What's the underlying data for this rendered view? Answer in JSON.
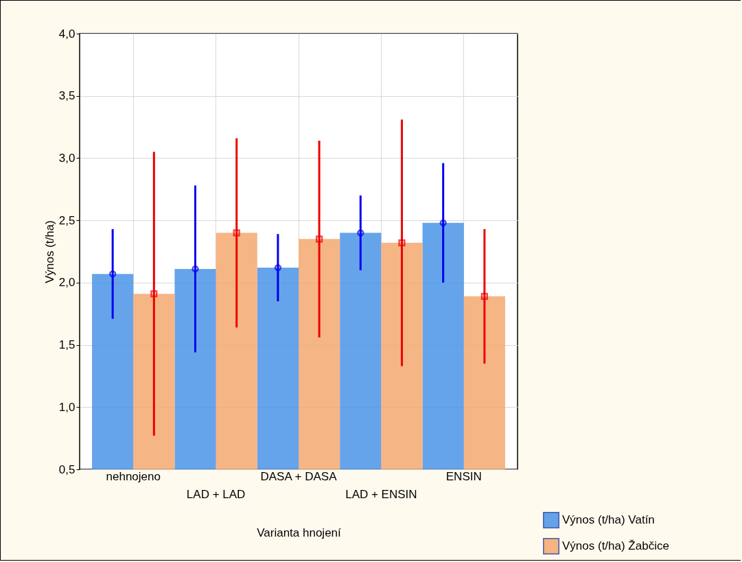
{
  "chart_data": {
    "type": "bar",
    "xlabel": "Varianta hnojení",
    "ylabel": "Výnos (t/ha)",
    "categories": [
      "nehnojeno",
      "LAD + LAD",
      "DASA + DASA",
      "LAD + ENSIN",
      "ENSIN"
    ],
    "series": [
      {
        "name": "Výnos (t/ha) Vatín",
        "color": "#4a94e8",
        "values": [
          2.07,
          2.11,
          2.12,
          2.4,
          2.48
        ]
      },
      {
        "name": "Výnos (t/ha) Žabčice",
        "color": "#f4a870",
        "values": [
          1.91,
          2.4,
          2.35,
          2.32,
          1.89
        ]
      },
      {
        "type": "scatter",
        "color": "#0000ee",
        "marker": "circle",
        "x": [
          "nehnojeno",
          "LAD + LAD",
          "DASA + DASA",
          "LAD + ENSIN",
          "ENSIN"
        ],
        "values": [
          2.07,
          2.11,
          2.12,
          2.4,
          2.48
        ],
        "errors": [
          0.36,
          0.67,
          0.27,
          0.3,
          0.48
        ]
      },
      {
        "type": "scatter",
        "color": "#ee0000",
        "marker": "square",
        "x": [
          "nehnojeno",
          "LAD + LAD",
          "DASA + DASA",
          "LAD + ENSIN",
          "ENSIN"
        ],
        "values": [
          1.91,
          2.4,
          2.35,
          2.32,
          1.89
        ],
        "errors": [
          1.14,
          0.76,
          0.79,
          0.99,
          0.54
        ]
      }
    ],
    "ylim": [
      0.5,
      4.0
    ],
    "yticks": [
      {
        "value": 0.5,
        "label": "0,5"
      },
      {
        "value": 1,
        "label": "1,0"
      },
      {
        "value": 1.5,
        "label": "1,5"
      },
      {
        "value": 2,
        "label": "2,0"
      },
      {
        "value": 2.5,
        "label": "2,5"
      },
      {
        "value": 3,
        "label": "3,0"
      },
      {
        "value": 3.5,
        "label": "3,5"
      },
      {
        "value": 4,
        "label": "4,0"
      }
    ],
    "grid": true,
    "legend": "bottom right"
  }
}
